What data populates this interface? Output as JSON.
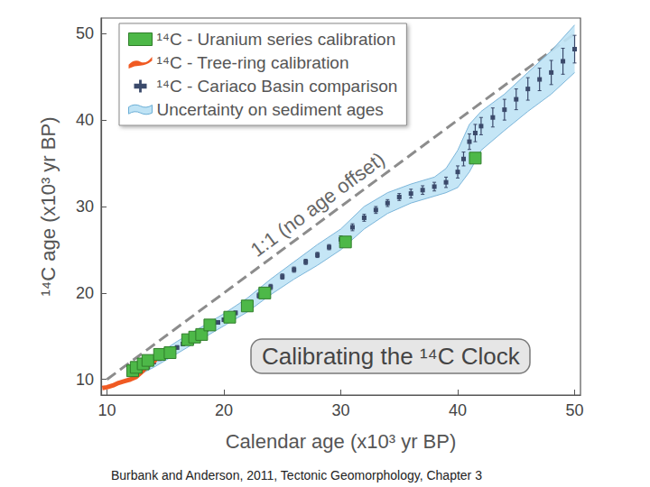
{
  "chart_data": {
    "type": "scatter",
    "title": "Calibrating the ¹⁴C Clock",
    "source": "Burbank and Anderson, 2011, Tectonic Geomorphology, Chapter 3",
    "x_label": "Calendar age (x10³ yr BP)",
    "y_label": "¹⁴C age (x10³ yr BP)",
    "xlim": [
      9.5,
      50.5
    ],
    "ylim": [
      8.2,
      51.8
    ],
    "xticks": [
      10,
      20,
      30,
      40,
      50
    ],
    "yticks": [
      10,
      20,
      30,
      40,
      50
    ],
    "grid": false,
    "legend": "upper left",
    "series": [
      {
        "name": "¹⁴C - Uranium series calibration",
        "type": "scatter",
        "marker": "square",
        "color": "#4db848",
        "x": [
          12.2,
          12.5,
          13.1,
          13.5,
          14.5,
          15.4,
          16.9,
          17.5,
          18.1,
          18.8,
          20.5,
          22.0,
          23.5,
          30.4,
          41.5
        ],
        "values": [
          11.0,
          11.4,
          11.8,
          12.2,
          12.9,
          13.1,
          14.6,
          14.9,
          15.2,
          16.3,
          17.2,
          18.5,
          20.0,
          25.9,
          35.6
        ]
      },
      {
        "name": "¹⁴C - Tree-ring calibration",
        "type": "line",
        "line_style": "solid",
        "color": "#f05a22",
        "x": [
          9.6,
          10.0,
          10.5,
          11.0,
          11.5,
          12.0,
          12.5,
          13.0,
          13.5,
          14.2
        ],
        "values": [
          9.0,
          9.1,
          9.3,
          9.6,
          9.8,
          10.0,
          10.3,
          10.9,
          11.6,
          12.3
        ]
      },
      {
        "name": "¹⁴C - Cariaco Basin comparison",
        "type": "errorbar",
        "marker": "square",
        "color": "#3b4a6b",
        "x": [
          12.5,
          13,
          13.5,
          14,
          14.5,
          15,
          15.5,
          16,
          16.5,
          17,
          17.5,
          18,
          18.5,
          19,
          19.5,
          20,
          21,
          22,
          23,
          24,
          25,
          26,
          27,
          28,
          29,
          30,
          31,
          32,
          33,
          34,
          35,
          36,
          37,
          38,
          39,
          40,
          40.5,
          41,
          41.5,
          42,
          43,
          44,
          45,
          46,
          47,
          48,
          49,
          50
        ],
        "values": [
          10.6,
          11.1,
          11.5,
          12.0,
          12.4,
          12.8,
          13.3,
          13.7,
          14.1,
          14.5,
          14.9,
          15.3,
          15.8,
          16.2,
          16.6,
          16.9,
          17.7,
          18.6,
          19.7,
          20.7,
          21.9,
          22.7,
          23.6,
          24.4,
          25.3,
          26.2,
          27.6,
          28.7,
          29.6,
          30.4,
          31.1,
          31.5,
          31.9,
          32.3,
          32.8,
          34.0,
          35.5,
          37.5,
          38.5,
          39.3,
          40.3,
          41.2,
          42.4,
          43.6,
          44.7,
          45.5,
          46.8,
          48.2
        ],
        "errors": [
          0.2,
          0.2,
          0.2,
          0.2,
          0.2,
          0.2,
          0.2,
          0.2,
          0.2,
          0.2,
          0.2,
          0.2,
          0.2,
          0.2,
          0.2,
          0.2,
          0.2,
          0.3,
          0.3,
          0.3,
          0.3,
          0.3,
          0.3,
          0.3,
          0.3,
          0.4,
          0.4,
          0.4,
          0.4,
          0.4,
          0.4,
          0.5,
          0.5,
          0.5,
          0.6,
          0.7,
          0.8,
          0.9,
          1.0,
          1.0,
          1.1,
          1.2,
          1.2,
          1.3,
          1.3,
          1.4,
          1.5,
          1.6
        ]
      },
      {
        "name": "Uncertainty on sediment ages",
        "type": "band",
        "color": "#bfe3f5",
        "x": [
          12,
          14,
          16,
          18,
          20,
          22,
          24,
          26,
          28,
          30,
          32,
          34,
          36,
          38,
          39,
          40,
          41,
          42,
          44,
          46,
          48,
          50
        ],
        "lower": [
          10.0,
          11.4,
          13.0,
          14.6,
          16.2,
          17.8,
          19.8,
          21.6,
          23.2,
          25.0,
          27.4,
          29.2,
          30.4,
          31.2,
          31.6,
          32.2,
          34.0,
          36.5,
          38.8,
          41.0,
          43.0,
          45.5
        ],
        "upper": [
          11.2,
          12.6,
          14.4,
          16.0,
          17.6,
          19.4,
          21.6,
          23.6,
          25.6,
          27.4,
          30.0,
          31.6,
          32.6,
          33.4,
          34.4,
          36.5,
          39.5,
          41.0,
          43.0,
          45.5,
          48.0,
          51.0
        ]
      },
      {
        "name": "1:1 (no age offset)",
        "type": "reference",
        "line_style": "dashed",
        "color": "#8c8c8c",
        "x": [
          10,
          50
        ],
        "values": [
          10,
          50
        ]
      }
    ]
  }
}
